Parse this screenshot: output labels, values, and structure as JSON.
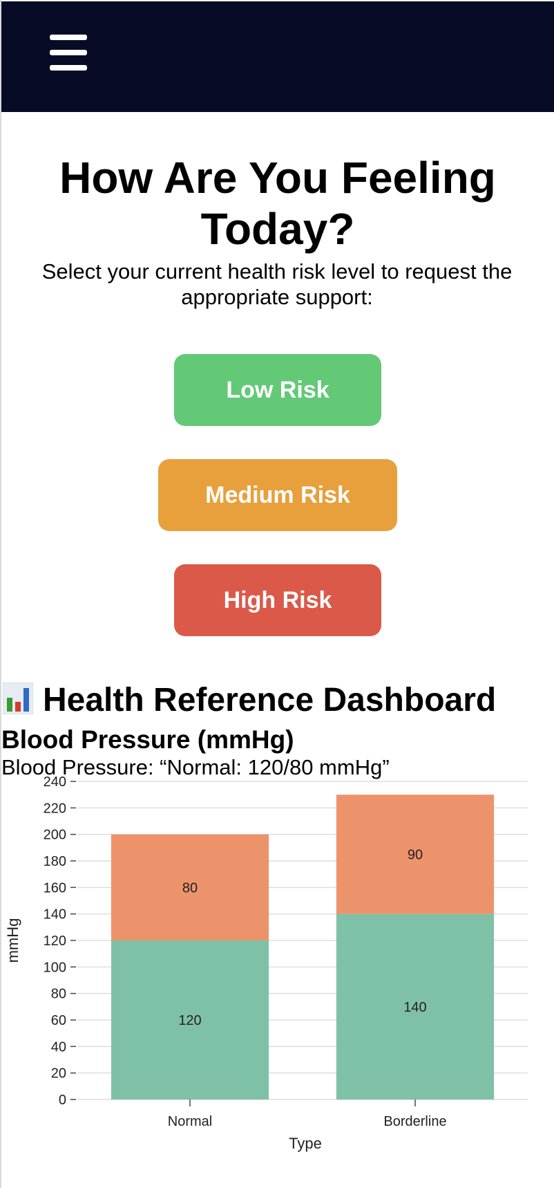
{
  "header": {
    "menu_icon": "hamburger-menu-icon",
    "background": "#070b26"
  },
  "page": {
    "title": "How Are You Feeling Today?",
    "subtitle": "Select your current health risk level to request the appropriate support:"
  },
  "risk_buttons": [
    {
      "label": "Low Risk",
      "color": "#63c977"
    },
    {
      "label": "Medium Risk",
      "color": "#e8a03c"
    },
    {
      "label": "High Risk",
      "color": "#db5948"
    }
  ],
  "dashboard": {
    "icon": "bar-chart-icon",
    "title": "Health Reference Dashboard",
    "bp_heading": "Blood Pressure (mmHg)",
    "bp_text": "Blood Pressure: “Normal: 120/80 mmHg”"
  },
  "chart_data": {
    "type": "bar",
    "stacked": true,
    "categories": [
      "Normal",
      "Borderline"
    ],
    "series": [
      {
        "values": [
          120,
          140
        ],
        "color": "#7fc1a7"
      },
      {
        "values": [
          80,
          90
        ],
        "color": "#ed936c"
      }
    ],
    "xlabel": "Type",
    "ylabel": "mmHg",
    "ylim": [
      0,
      240
    ],
    "yticks": [
      0,
      20,
      40,
      60,
      80,
      100,
      120,
      140,
      160,
      180,
      200,
      220,
      240
    ],
    "grid": true,
    "data_labels": true
  }
}
